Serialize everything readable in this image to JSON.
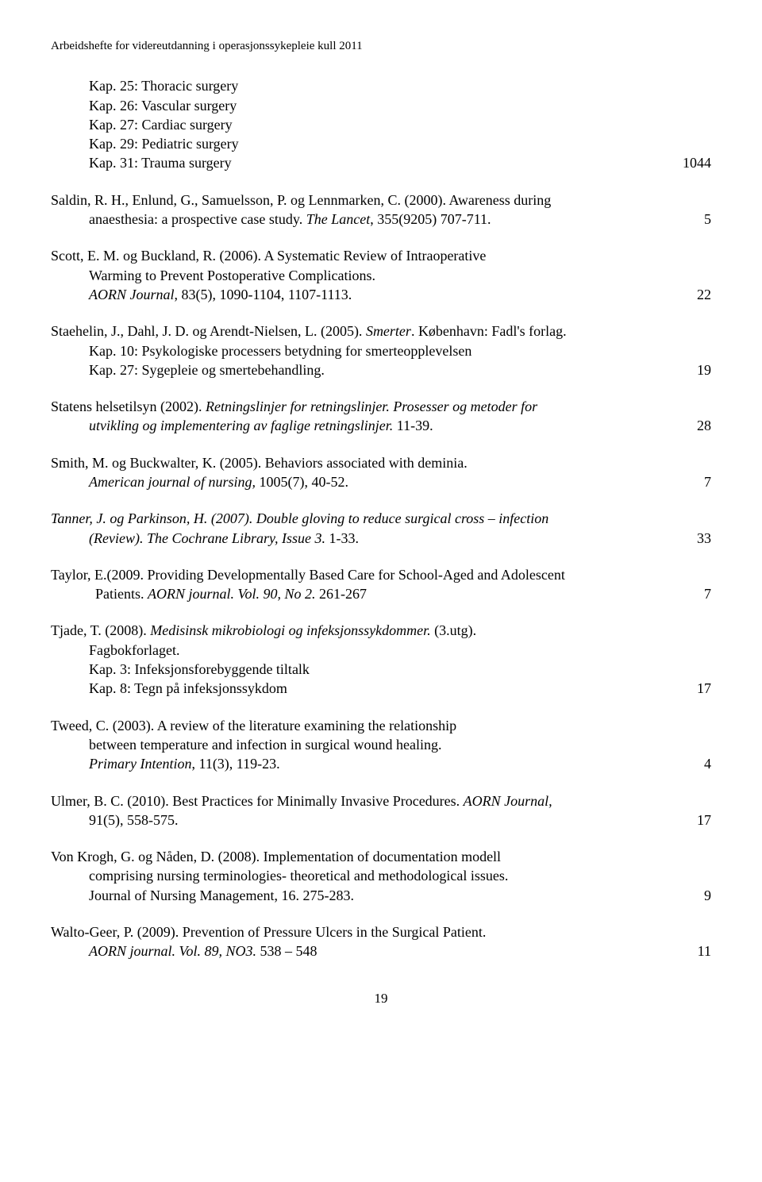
{
  "header": "Arbeidshefte for videreutdanning i operasjonssykepleie kull 2011",
  "e0": {
    "l1": "Kap. 25: Thoracic surgery",
    "l2": "Kap. 26: Vascular surgery",
    "l3": "Kap. 27: Cardiac surgery",
    "l4": "Kap. 29: Pediatric surgery",
    "l5": "Kap. 31: Trauma surgery",
    "page": "1044"
  },
  "e1": {
    "l1a": "Saldin, R. H., Enlund, G., Samuelsson, P. og Lennmarken, C. (2000). Awareness during",
    "l2a": "anaesthesia: a prospective case study. ",
    "l2b": "The Lancet",
    "l2c": ", 355(9205) 707-711.",
    "page": "5"
  },
  "e2": {
    "l1": "Scott, E. M. og Buckland, R. (2006). A Systematic Review of Intraoperative",
    "l2": "Warming to Prevent Postoperative Complications.",
    "l3a": "AORN Journal",
    "l3b": ", 83(5), 1090-1104, 1107-1113.",
    "page": "22"
  },
  "e3": {
    "l1a": "Staehelin, J., Dahl, J. D. og Arendt-Nielsen, L. (2005). ",
    "l1b": "Smerter",
    "l1c": ". København: Fadl's forlag.",
    "l2": "Kap. 10: Psykologiske processers betydning for smerteopplevelsen",
    "l3": "Kap. 27: Sygepleie og smertebehandling.",
    "page": "19"
  },
  "e4": {
    "l1a": "Statens helsetilsyn (2002). ",
    "l1b": "Retningslinjer for retningslinjer. Prosesser og metoder for",
    "l2a": "utvikling og implementering av faglige retningslinjer.",
    "l2b": " 11-39.",
    "page": "28"
  },
  "e5": {
    "l1": "Smith, M. og Buckwalter, K. (2005). Behaviors associated with deminia.",
    "l2a": "American journal of nursing,",
    "l2b": " 1005(7), 40-52.",
    "page": "7"
  },
  "e6": {
    "l1a": "Tanner, J. og Parkinson, H. (2007). Double gloving to reduce surgical cross – infection",
    "l2a": "(Review). The Cochrane Library, Issue 3. ",
    "l2b": "1-33.",
    "page": "33"
  },
  "e7": {
    "l1": "Taylor, E.(2009. Providing Developmentally Based Care for School-Aged and Adolescent",
    "l2a": "Patients. ",
    "l2b": "AORN journal. Vol. 90, No 2.",
    "l2c": " 261-267",
    "page": "7"
  },
  "e8": {
    "l1a": "Tjade, T. (2008). ",
    "l1b": "Medisinsk mikrobiologi og infeksjonssykdommer.",
    "l1c": " (3.utg).",
    "l2": "Fagbokforlaget.",
    "l3": "Kap. 3: Infeksjonsforebyggende tiltalk",
    "l4": "Kap. 8: Tegn på infeksjonssykdom",
    "page": "17"
  },
  "e9": {
    "l1": "Tweed, C. (2003). A review of the literature examining the relationship",
    "l2": "between temperature and infection in surgical wound healing.",
    "l3a": "Primary Intention",
    "l3b": ", 11(3), 119-23.",
    "page": "4"
  },
  "e10": {
    "l1a": "Ulmer, B. C. (2010). Best Practices for Minimally Invasive Procedures. ",
    "l1b": "AORN Journal,",
    "l2": "91(5), 558-575.",
    "page": "17"
  },
  "e11": {
    "l1": "Von Krogh, G. og Nåden, D. (2008). Implementation of documentation modell",
    "l2": "comprising nursing terminologies- theoretical and methodological issues.",
    "l3": " Journal of Nursing Management, 16. 275-283.",
    "page": "9"
  },
  "e12": {
    "l1": "Walto-Geer, P. (2009). Prevention of Pressure Ulcers in the Surgical Patient.",
    "l2a": "AORN journal. Vol. 89, NO3.",
    "l2b": " 538 – 548",
    "page": "11"
  },
  "footer": "19"
}
